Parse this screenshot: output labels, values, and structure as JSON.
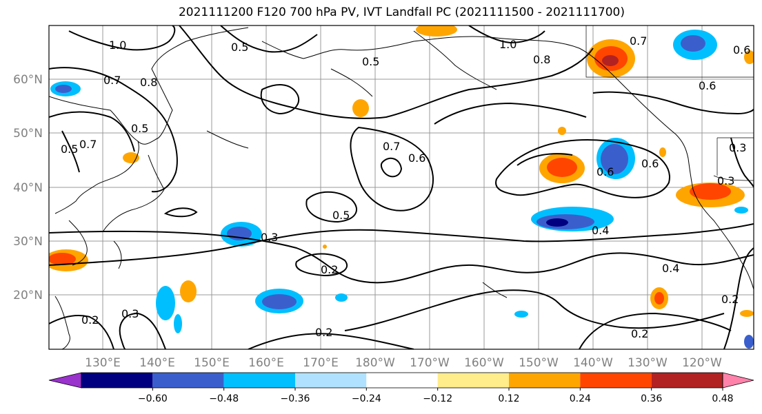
{
  "title": "2021111200 F120 700 hPa PV, IVT Landfall PC (2021111500 - 2021111700)",
  "lat_labels": [
    "60°N",
    "50°N",
    "40°N",
    "30°N",
    "20°N"
  ],
  "lon_labels": [
    "130°E",
    "140°E",
    "150°E",
    "160°E",
    "170°E",
    "180°W",
    "170°W",
    "160°W",
    "150°W",
    "140°W",
    "130°W",
    "120°W"
  ],
  "contour_labels": [
    "1.0",
    "0.5",
    "0.5",
    "1.0",
    "0.8",
    "0.7",
    "0.7",
    "0.8",
    "0.7",
    "0.6",
    "0.5",
    "0.5",
    "0.7",
    "0.6",
    "0.6",
    "0.6",
    "0.3",
    "0.3",
    "0.5",
    "0.3",
    "0.2",
    "0.4",
    "0.4",
    "0.2",
    "0.2",
    "0.2",
    "0.3",
    "0.2",
    "0.6"
  ],
  "colorbar": {
    "ticks": [
      "−0.60",
      "−0.48",
      "−0.36",
      "−0.24",
      "−0.12",
      "0.12",
      "0.24",
      "0.36",
      "0.48",
      "0.60"
    ],
    "colors": [
      "#9a32cd",
      "#000080",
      "#3a5fcd",
      "#00bfff",
      "#b0e2ff",
      "#ffffff",
      "#ffec8b",
      "#ffa500",
      "#ff4500",
      "#b22222",
      "#ff82ab"
    ]
  }
}
